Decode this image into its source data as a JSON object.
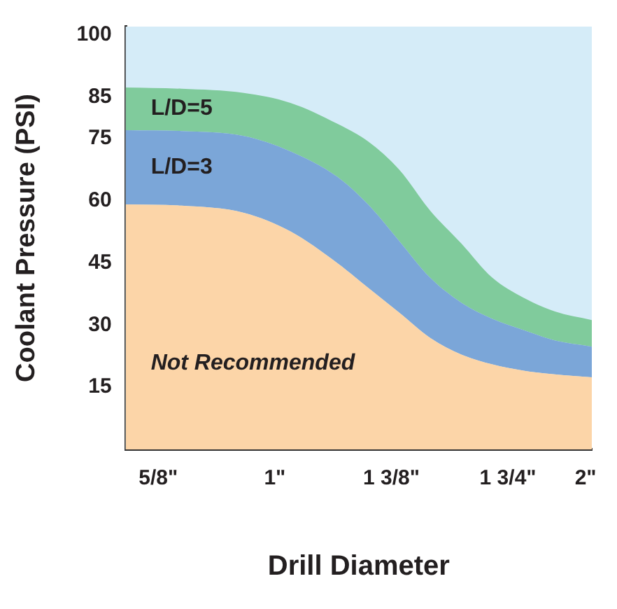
{
  "chart_data": {
    "type": "area",
    "xlabel": "Drill Diameter",
    "ylabel": "Coolant Pressure (PSI)",
    "stacked": true,
    "x": [
      0.52,
      0.7,
      0.9,
      1.05,
      1.2,
      1.3,
      1.4,
      1.5,
      1.6,
      1.7,
      1.8,
      1.9,
      2.02
    ],
    "series": [
      {
        "name": "Not Recommended",
        "color": "#fcd5a8",
        "values": [
          59.1,
          58.8,
          57.1,
          52.6,
          45,
          39,
          33,
          26.9,
          22.9,
          20.5,
          19,
          18.1,
          17.4
        ]
      },
      {
        "name": "L/D=3",
        "color": "#7ba6d8",
        "values": [
          17.9,
          18,
          18.5,
          19.3,
          20.8,
          20.1,
          17.3,
          14.5,
          12.5,
          11,
          9.8,
          8.2,
          7.4
        ]
      },
      {
        "name": "L/D=5",
        "color": "#80cb9c",
        "values": [
          10.3,
          10.2,
          10.4,
          11.7,
          12.8,
          15.2,
          17.2,
          16.2,
          14.3,
          9.9,
          7.8,
          7,
          6.4
        ]
      }
    ],
    "xlim": [
      0.52,
      2.02
    ],
    "xticks": [
      {
        "value": 0.625,
        "label": "5/8\""
      },
      {
        "value": 1,
        "label": "1\""
      },
      {
        "value": 1.375,
        "label": "1 3/8\""
      },
      {
        "value": 1.75,
        "label": "1 3/4\""
      },
      {
        "value": 2,
        "label": "2\""
      }
    ],
    "bands": [
      {
        "axis": "y",
        "from": 0,
        "to": 102,
        "color": "#d5ecf8"
      }
    ],
    "ylim": [
      0,
      102
    ],
    "yticks": [
      15,
      30,
      45,
      60,
      75,
      85,
      100
    ],
    "legend": false,
    "marker": "none"
  }
}
